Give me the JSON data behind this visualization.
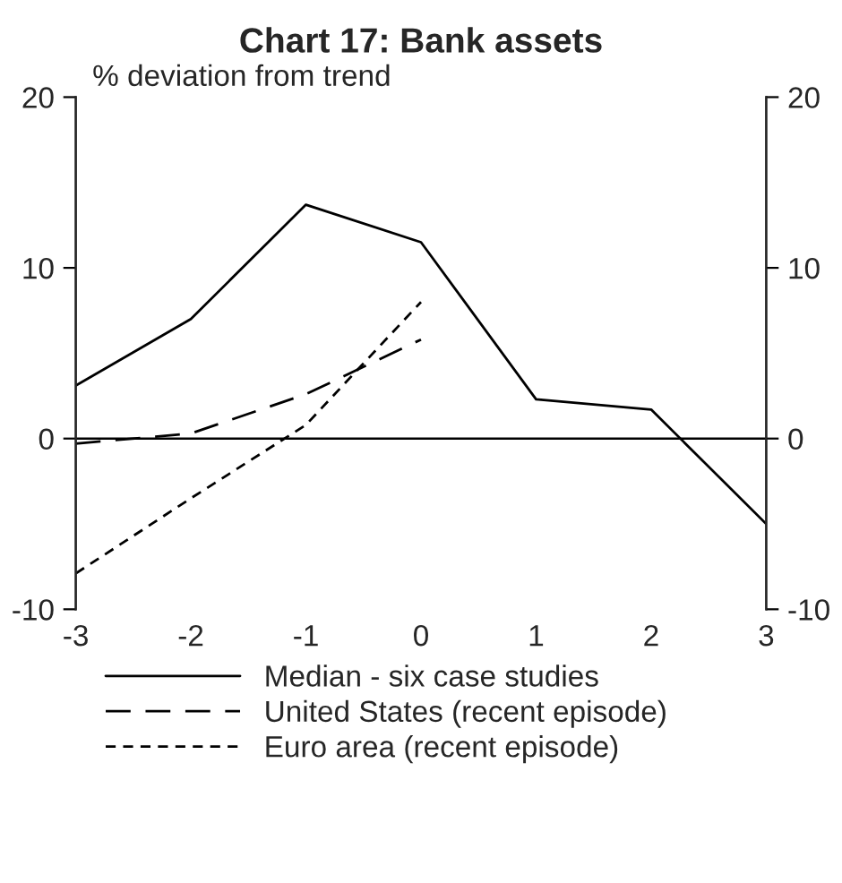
{
  "chart_data": {
    "type": "line",
    "title": "Chart 17: Bank assets",
    "ylabel": "% deviation from trend",
    "x": [
      -3,
      -2,
      -1,
      0,
      1,
      2,
      3
    ],
    "xlim": [
      -3,
      3
    ],
    "xticks": [
      -3,
      -2,
      -1,
      0,
      1,
      2,
      3
    ],
    "ylim": [
      -10,
      20
    ],
    "yticks": [
      -10,
      0,
      10,
      20
    ],
    "y2lim": [
      -10,
      20
    ],
    "y2ticks": [
      -10,
      0,
      10,
      20
    ],
    "grid": false,
    "legend": "bottom",
    "marker": "none",
    "ref_lines": [
      {
        "axis": "y",
        "value": 0,
        "color": "#000000",
        "line_style": "solid"
      }
    ],
    "series": [
      {
        "name": "Median - six case studies",
        "color": "#000000",
        "line_style": "solid",
        "values": [
          3.1,
          7.0,
          13.7,
          11.5,
          2.3,
          1.7,
          -5.0
        ]
      },
      {
        "name": "United States (recent episode)",
        "color": "#000000",
        "line_style": "dashed",
        "x": [
          -3,
          -2,
          -1,
          0
        ],
        "values": [
          -0.3,
          0.3,
          2.6,
          5.8
        ]
      },
      {
        "name": "Euro area (recent episode)",
        "color": "#000000",
        "line_style": "dotted",
        "x": [
          -3,
          -2,
          -1,
          0
        ],
        "values": [
          -7.9,
          -3.5,
          0.8,
          8.0
        ]
      }
    ]
  }
}
